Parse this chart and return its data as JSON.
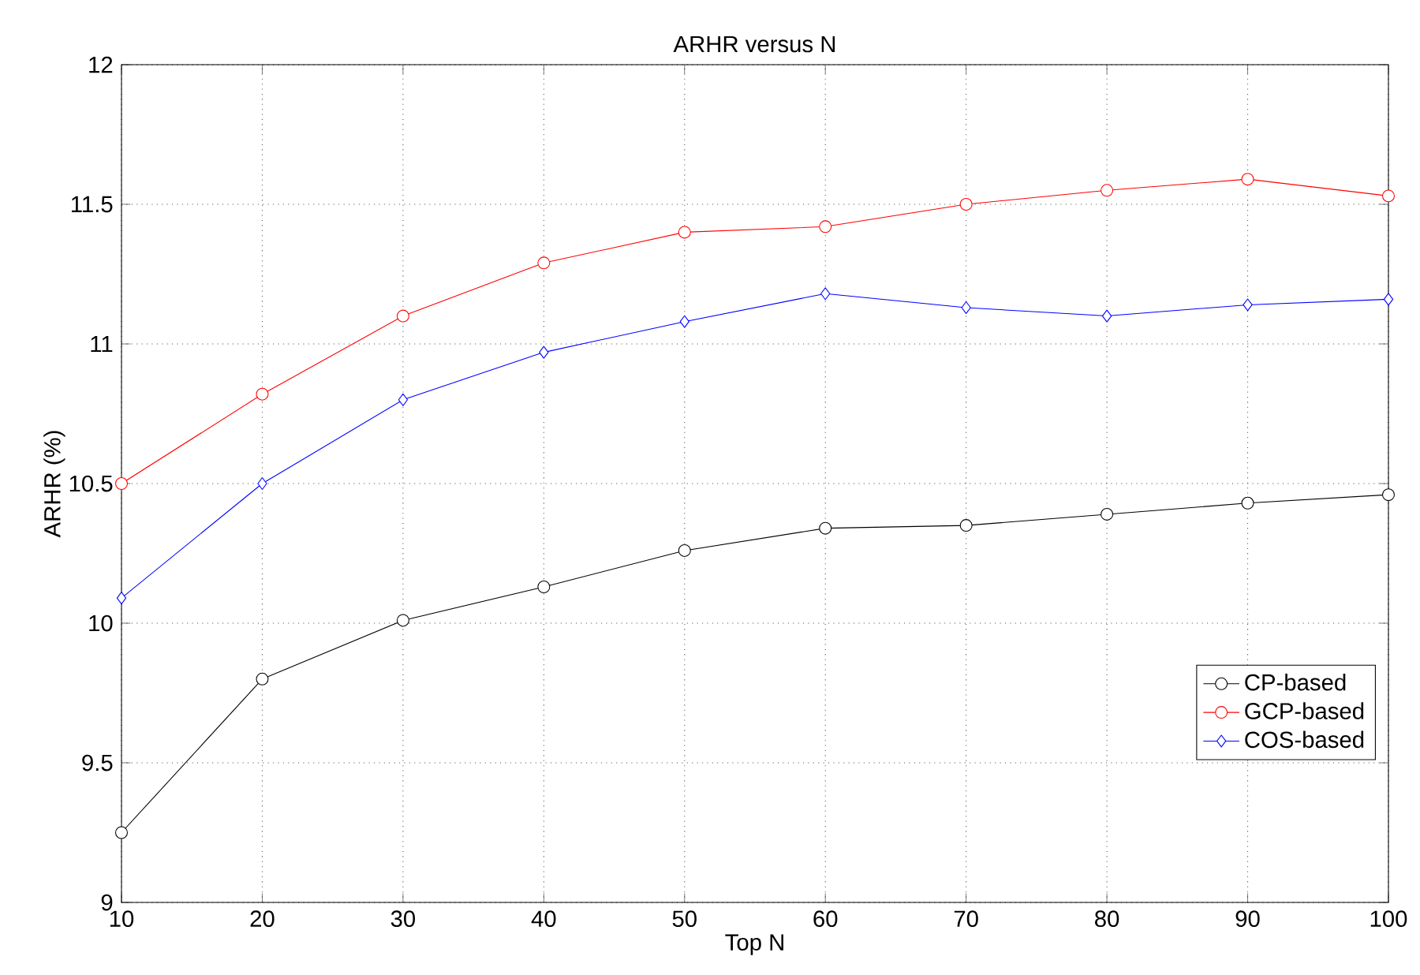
{
  "chart_data": {
    "type": "line",
    "title": "ARHR versus N",
    "xlabel": "Top N",
    "ylabel": "ARHR (%)",
    "x": [
      10,
      20,
      30,
      40,
      50,
      60,
      70,
      80,
      90,
      100
    ],
    "series": [
      {
        "name": "CP-based",
        "color": "#000000",
        "marker": "circle",
        "values": [
          9.25,
          9.8,
          10.01,
          10.13,
          10.26,
          10.34,
          10.35,
          10.39,
          10.43,
          10.46
        ]
      },
      {
        "name": "GCP-based",
        "color": "#ff0000",
        "marker": "circle",
        "values": [
          10.5,
          10.82,
          11.1,
          11.29,
          11.4,
          11.42,
          11.5,
          11.55,
          11.59,
          11.53
        ]
      },
      {
        "name": "COS-based",
        "color": "#0000ff",
        "marker": "diamond",
        "values": [
          10.09,
          10.5,
          10.8,
          10.97,
          11.08,
          11.18,
          11.13,
          11.1,
          11.14,
          11.16
        ]
      }
    ],
    "xlim": [
      10,
      100
    ],
    "ylim": [
      9,
      12
    ],
    "xticks": [
      10,
      20,
      30,
      40,
      50,
      60,
      70,
      80,
      90,
      100
    ],
    "yticks": [
      9,
      9.5,
      10,
      10.5,
      11,
      11.5,
      12
    ],
    "grid": true,
    "legend": "bottom right",
    "line_style": "solid"
  }
}
